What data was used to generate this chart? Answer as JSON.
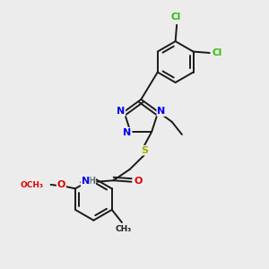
{
  "background_color": "#ececec",
  "bond_color": "#1a1a1a",
  "atom_colors": {
    "N": "#0000ee",
    "O": "#dd0000",
    "S": "#aaaa00",
    "Cl": "#33bb00",
    "C": "#1a1a1a",
    "H": "#607070"
  },
  "figsize": [
    3.0,
    3.0
  ],
  "dpi": 100,
  "xlim": [
    0,
    10
  ],
  "ylim": [
    0,
    10
  ]
}
